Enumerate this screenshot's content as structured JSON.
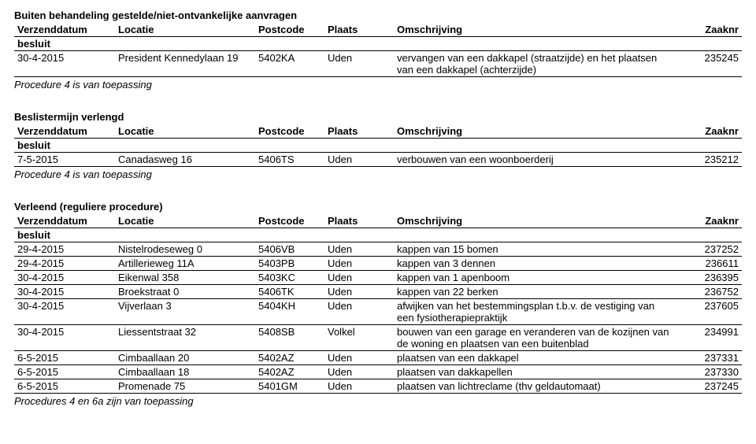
{
  "sections": [
    {
      "title": "Buiten behandeling gestelde/niet-ontvankelijke aanvragen",
      "headers": {
        "col1": "Verzenddatum",
        "col2": "Locatie",
        "col3": "Postcode",
        "col4": "Plaats",
        "col5": "Omschrijving",
        "col6": "Zaaknr"
      },
      "subheader": "besluit",
      "rows": [
        {
          "c1": "30-4-2015",
          "c2": "President Kennedylaan 19",
          "c3": "5402KA",
          "c4": "Uden",
          "c5": "vervangen van een dakkapel (straatzijde) en het plaatsen van een dakkapel (achterzijde)",
          "c6": "235245"
        }
      ],
      "footer": "Procedure 4 is van toepassing"
    },
    {
      "title": "Beslistermijn verlengd",
      "headers": {
        "col1": "Verzenddatum",
        "col2": "Locatie",
        "col3": "Postcode",
        "col4": "Plaats",
        "col5": "Omschrijving",
        "col6": "Zaaknr"
      },
      "subheader": "besluit",
      "rows": [
        {
          "c1": "7-5-2015",
          "c2": "Canadasweg 16",
          "c3": "5406TS",
          "c4": "Uden",
          "c5": "verbouwen van een woonboerderij",
          "c6": "235212"
        }
      ],
      "footer": "Procedure 4 is van toepassing"
    },
    {
      "title": "Verleend (reguliere procedure)",
      "headers": {
        "col1": "Verzenddatum",
        "col2": "Locatie",
        "col3": "Postcode",
        "col4": "Plaats",
        "col5": "Omschrijving",
        "col6": "Zaaknr"
      },
      "subheader": "besluit",
      "rows": [
        {
          "c1": "29-4-2015",
          "c2": "Nistelrodeseweg 0",
          "c3": "5406VB",
          "c4": "Uden",
          "c5": "kappen van 15 bomen",
          "c6": "237252"
        },
        {
          "c1": "29-4-2015",
          "c2": "Artillerieweg 11A",
          "c3": "5403PB",
          "c4": "Uden",
          "c5": "kappen van 3 dennen",
          "c6": "236611"
        },
        {
          "c1": "30-4-2015",
          "c2": "Eikenwal 358",
          "c3": "5403KC",
          "c4": "Uden",
          "c5": "kappen van 1 apenboom",
          "c6": "236395"
        },
        {
          "c1": "30-4-2015",
          "c2": "Broekstraat 0",
          "c3": "5406TK",
          "c4": "Uden",
          "c5": "kappen van 22 berken",
          "c6": "236752"
        },
        {
          "c1": "30-4-2015",
          "c2": "Vijverlaan 3",
          "c3": "5404KH",
          "c4": "Uden",
          "c5": "afwijken van het bestemmingsplan t.b.v. de vestiging van een fysiotherapiepraktijk",
          "c6": "237605"
        },
        {
          "c1": "30-4-2015",
          "c2": "Liessentstraat 32",
          "c3": "5408SB",
          "c4": "Volkel",
          "c5": "bouwen van een garage en veranderen van de kozijnen van de woning en plaatsen van een buitenblad",
          "c6": "234991"
        },
        {
          "c1": "6-5-2015",
          "c2": "Cimbaallaan 20",
          "c3": "5402AZ",
          "c4": "Uden",
          "c5": "plaatsen van een dakkapel",
          "c6": "237331"
        },
        {
          "c1": "6-5-2015",
          "c2": "Cimbaallaan 18",
          "c3": "5402AZ",
          "c4": "Uden",
          "c5": "plaatsen van dakkapellen",
          "c6": "237330"
        },
        {
          "c1": "6-5-2015",
          "c2": "Promenade 75",
          "c3": "5401GM",
          "c4": "Uden",
          "c5": "plaatsen van lichtreclame (thv geldautomaat)",
          "c6": "237245"
        }
      ],
      "footer": "Procedures 4 en 6a zijn van toepassing"
    }
  ]
}
